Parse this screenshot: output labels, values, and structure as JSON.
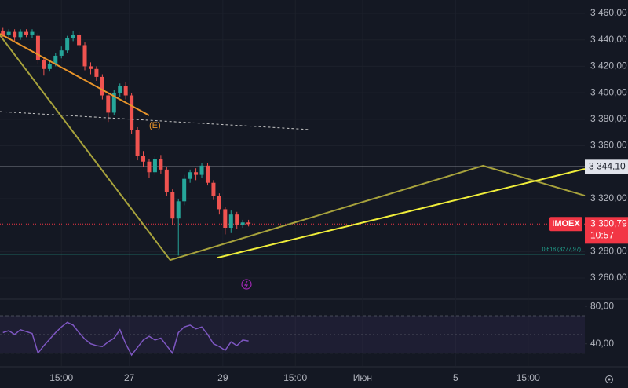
{
  "chart_data": {
    "type": "candlestick",
    "symbol": "IMOEX",
    "time_label": "10:57",
    "up_color": "#26a69a",
    "down_color": "#ef5350",
    "x": [
      0,
      1,
      2,
      3,
      4,
      5,
      6,
      7,
      8,
      9,
      10,
      11,
      12,
      13,
      14,
      15,
      16,
      17,
      18,
      19,
      20,
      21,
      22,
      23,
      24,
      25,
      26,
      27,
      28,
      29,
      30,
      31,
      32,
      33,
      34,
      35,
      36,
      37,
      38,
      39,
      40,
      41,
      42
    ],
    "open": [
      3447,
      3444,
      3446,
      3442,
      3446,
      3444,
      3443,
      3425,
      3418,
      3422,
      3428,
      3432,
      3441,
      3444,
      3436,
      3420,
      3418,
      3412,
      3398,
      3385,
      3400,
      3405,
      3398,
      3372,
      3352,
      3348,
      3340,
      3350,
      3342,
      3325,
      3305,
      3318,
      3335,
      3340,
      3338,
      3345,
      3332,
      3322,
      3312,
      3298,
      3308,
      3300,
      3302
    ],
    "high": [
      3449,
      3448,
      3448,
      3448,
      3448,
      3448,
      3445,
      3427,
      3424,
      3430,
      3435,
      3443,
      3447,
      3446,
      3438,
      3423,
      3420,
      3414,
      3400,
      3402,
      3407,
      3408,
      3400,
      3374,
      3356,
      3350,
      3352,
      3353,
      3344,
      3327,
      3320,
      3338,
      3342,
      3343,
      3347,
      3347,
      3334,
      3324,
      3314,
      3311,
      3310,
      3304,
      3304
    ],
    "low": [
      3442,
      3441,
      3439,
      3440,
      3442,
      3441,
      3422,
      3413,
      3416,
      3420,
      3426,
      3430,
      3439,
      3434,
      3417,
      3414,
      3409,
      3395,
      3378,
      3383,
      3397,
      3395,
      3369,
      3349,
      3344,
      3336,
      3338,
      3339,
      3322,
      3300,
      3277,
      3315,
      3332,
      3334,
      3336,
      3330,
      3319,
      3308,
      3293,
      3294,
      3297,
      3298,
      3299
    ],
    "close": [
      3444,
      3446,
      3442,
      3446,
      3444,
      3446,
      3425,
      3418,
      3422,
      3428,
      3432,
      3441,
      3444,
      3436,
      3420,
      3418,
      3412,
      3398,
      3385,
      3400,
      3405,
      3398,
      3372,
      3352,
      3348,
      3340,
      3350,
      3342,
      3325,
      3305,
      3318,
      3335,
      3340,
      3338,
      3345,
      3332,
      3322,
      3312,
      3298,
      3308,
      3300,
      3302,
      3300.79
    ],
    "xlim": [
      -0.5,
      99.5
    ],
    "xticks": [
      {
        "value": 10,
        "label": "15:00"
      },
      {
        "value": 21.6,
        "label": "27"
      },
      {
        "value": 37.6,
        "label": "29"
      },
      {
        "value": 50,
        "label": "15:00"
      },
      {
        "value": 61.5,
        "label": "Июн"
      },
      {
        "value": 77.4,
        "label": "5"
      },
      {
        "value": 89.8,
        "label": "15:00"
      }
    ],
    "ylim": [
      3244.6,
      3470.1
    ],
    "yticks": [
      {
        "value": 3460,
        "label": "3 460,00"
      },
      {
        "value": 3440,
        "label": "3 440,00"
      },
      {
        "value": 3420,
        "label": "3 420,00"
      },
      {
        "value": 3400,
        "label": "3 400,00"
      },
      {
        "value": 3380,
        "label": "3 380,00"
      },
      {
        "value": 3360,
        "label": "3 360,00"
      },
      {
        "value": 3320,
        "label": "3 320,00"
      },
      {
        "value": 3280,
        "label": "3 280,00"
      },
      {
        "value": 3260,
        "label": "3 260,00"
      }
    ],
    "price_lines": [
      {
        "value": 3344.1,
        "label": "3 344,10",
        "color": "#e0e3eb"
      },
      {
        "value": 3300.79,
        "label": "3 300,79",
        "color": "#f23645"
      },
      {
        "value": 3277.97,
        "label": "0.618 (3277,97)",
        "color": "#22ab94"
      }
    ],
    "drawings": [
      {
        "color": "#e8942a",
        "x": [
          -0.5,
          25
        ],
        "y": [
          3444.6,
          3382.9
        ]
      },
      {
        "color": "#a7a23c",
        "x": [
          -0.5,
          28.6,
          82.1,
          99.5
        ],
        "y": [
          3443.4,
          3273.6,
          3344.9,
          3322.3
        ]
      },
      {
        "color": "#f0ee3a",
        "x": [
          36.7,
          99.5
        ],
        "y": [
          3275.4,
          3342.5
        ]
      },
      {
        "color": "#c8c8c8",
        "dashed": true,
        "x": [
          -0.5,
          52.5
        ],
        "y": [
          3385.8,
          3372.2
        ]
      }
    ],
    "annotations": [
      {
        "text": "(E)",
        "x": 25,
        "y": 3375,
        "color": "#e8942a"
      }
    ],
    "rsi": {
      "color": "#7e57c2",
      "values": [
        52,
        54,
        50,
        55,
        53,
        51,
        30,
        38,
        45,
        52,
        58,
        63,
        60,
        52,
        45,
        40,
        38,
        37,
        42,
        46,
        55,
        40,
        28,
        36,
        44,
        48,
        44,
        46,
        38,
        30,
        52,
        58,
        60,
        56,
        58,
        50,
        40,
        37,
        33,
        42,
        38,
        44,
        43
      ],
      "ylim": [
        16.2,
        86.8
      ],
      "yticks": [
        {
          "value": 80,
          "label": "80,00"
        },
        {
          "value": 40,
          "label": "40,00"
        }
      ],
      "bands": [
        70,
        30
      ],
      "midline": 50
    }
  }
}
